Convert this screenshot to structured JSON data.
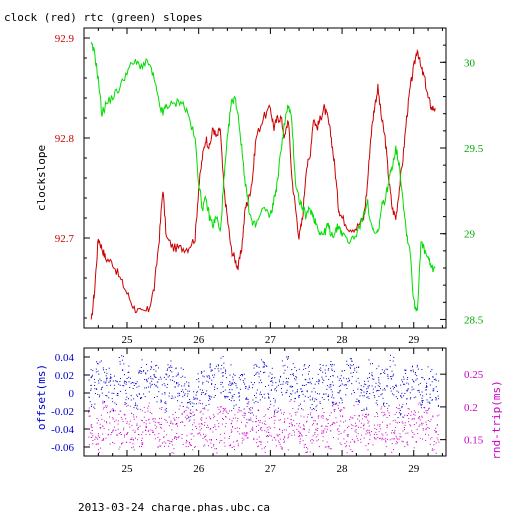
{
  "header": {
    "title": "clock (red) rtc (green) slopes",
    "footer": "2013-03-24  charge.phas.ubc.ca"
  },
  "colors": {
    "clock": "#cc0000",
    "rtc": "#00dd00",
    "offset": "#0000cc",
    "rnd_trip": "#cc00cc",
    "axis": "#000000"
  },
  "chart_data": [
    {
      "type": "line",
      "ylabel": "clockslope",
      "xlim": [
        24.4,
        29.45
      ],
      "ylim_left": [
        92.61,
        92.91
      ],
      "ylim_right": [
        28.45,
        30.2
      ],
      "x_ticks": [
        "25",
        "26",
        "27",
        "28",
        "29"
      ],
      "y_ticks_left": [
        "92.9",
        "92.8",
        "92.7"
      ],
      "y_ticks_right": [
        "30",
        "29.5",
        "29",
        "28.5"
      ],
      "series": [
        {
          "name": "clock (red)",
          "axis": "left",
          "x": [
            24.5,
            24.55,
            24.6,
            24.65,
            24.7,
            24.8,
            24.9,
            25.0,
            25.1,
            25.2,
            25.3,
            25.38,
            25.45,
            25.5,
            25.55,
            25.65,
            25.75,
            25.85,
            25.95,
            26.0,
            26.05,
            26.1,
            26.15,
            26.2,
            26.25,
            26.3,
            26.35,
            26.4,
            26.45,
            26.5,
            26.55,
            26.6,
            26.65,
            26.7,
            26.75,
            26.8,
            26.9,
            27.0,
            27.05,
            27.1,
            27.15,
            27.2,
            27.25,
            27.3,
            27.35,
            27.4,
            27.45,
            27.5,
            27.55,
            27.6,
            27.65,
            27.7,
            27.75,
            27.8,
            27.85,
            27.9,
            27.95,
            28.0,
            28.1,
            28.2,
            28.3,
            28.35,
            28.4,
            28.45,
            28.5,
            28.55,
            28.6,
            28.65,
            28.7,
            28.75,
            28.8,
            28.85,
            28.9,
            28.95,
            29.0,
            29.05,
            29.1,
            29.15,
            29.2,
            29.25,
            29.3
          ],
          "values": [
            92.615,
            92.65,
            92.7,
            92.69,
            92.68,
            92.675,
            92.66,
            92.645,
            92.63,
            92.625,
            92.628,
            92.65,
            92.7,
            92.75,
            92.7,
            92.69,
            92.69,
            92.69,
            92.7,
            92.75,
            92.78,
            92.8,
            92.79,
            92.81,
            92.8,
            92.81,
            92.75,
            92.72,
            92.69,
            92.68,
            92.67,
            92.69,
            92.73,
            92.74,
            92.76,
            92.8,
            92.82,
            92.83,
            92.81,
            92.82,
            92.82,
            92.8,
            92.82,
            92.76,
            92.73,
            92.7,
            92.72,
            92.77,
            92.78,
            92.82,
            92.81,
            92.82,
            92.83,
            92.82,
            92.8,
            92.77,
            92.73,
            92.72,
            92.71,
            92.71,
            92.72,
            92.75,
            92.8,
            92.83,
            92.85,
            92.82,
            92.8,
            92.76,
            92.73,
            92.72,
            92.75,
            92.78,
            92.82,
            92.85,
            92.87,
            92.89,
            92.87,
            92.86,
            92.84,
            92.83,
            92.83
          ]
        },
        {
          "name": "rtc (green)",
          "axis": "right",
          "x": [
            24.5,
            24.55,
            24.6,
            24.65,
            24.7,
            24.8,
            24.9,
            25.0,
            25.1,
            25.2,
            25.3,
            25.38,
            25.45,
            25.5,
            25.55,
            25.65,
            25.75,
            25.85,
            25.95,
            26.0,
            26.05,
            26.1,
            26.15,
            26.2,
            26.25,
            26.3,
            26.35,
            26.4,
            26.45,
            26.5,
            26.55,
            26.6,
            26.65,
            26.7,
            26.75,
            26.8,
            26.9,
            27.0,
            27.05,
            27.1,
            27.15,
            27.2,
            27.25,
            27.3,
            27.35,
            27.4,
            27.45,
            27.5,
            27.55,
            27.6,
            27.65,
            27.7,
            27.75,
            27.8,
            27.85,
            27.9,
            27.95,
            28.0,
            28.1,
            28.2,
            28.3,
            28.35,
            28.4,
            28.45,
            28.5,
            28.55,
            28.6,
            28.65,
            28.7,
            28.75,
            28.8,
            28.85,
            28.9,
            28.95,
            29.0,
            29.05,
            29.1,
            29.15,
            29.2,
            29.25,
            29.3
          ],
          "values": [
            30.1,
            30.05,
            29.9,
            29.7,
            29.75,
            29.8,
            29.85,
            29.95,
            30.0,
            29.98,
            30.0,
            29.9,
            29.75,
            29.7,
            29.75,
            29.75,
            29.78,
            29.7,
            29.55,
            29.3,
            29.15,
            29.2,
            29.1,
            29.05,
            29.1,
            29.0,
            29.3,
            29.55,
            29.75,
            29.8,
            29.7,
            29.5,
            29.3,
            29.15,
            29.05,
            29.05,
            29.15,
            29.1,
            29.2,
            29.3,
            29.5,
            29.65,
            29.75,
            29.65,
            29.3,
            29.2,
            29.15,
            29.1,
            29.15,
            29.1,
            29.05,
            29.0,
            29.0,
            29.05,
            29.0,
            29.0,
            29.05,
            29.0,
            28.95,
            29.0,
            29.1,
            29.2,
            29.05,
            29.0,
            29.0,
            29.15,
            29.2,
            29.3,
            29.4,
            29.5,
            29.4,
            29.2,
            29.0,
            28.9,
            28.6,
            28.55,
            28.95,
            28.9,
            28.85,
            28.8,
            28.8
          ]
        }
      ]
    },
    {
      "type": "scatter",
      "ylabel_left": "offset(ms)",
      "ylabel_right": "rnd-trip(ms)",
      "xlim": [
        24.4,
        29.45
      ],
      "ylim_left": [
        -0.07,
        0.05
      ],
      "ylim_right": [
        0.125,
        0.29
      ],
      "x_ticks": [
        "25",
        "26",
        "27",
        "28",
        "29"
      ],
      "y_ticks_left": [
        "0.04",
        "0.02",
        "0",
        "-0.02",
        "-0.04",
        "-0.06"
      ],
      "y_ticks_right": [
        "0.25",
        "0.2",
        "0.15"
      ],
      "series": [
        {
          "name": "offset(ms)",
          "axis": "left",
          "x": [
            24.5,
            24.6,
            24.7,
            24.8,
            24.9,
            25.0,
            25.1,
            25.2,
            25.3,
            25.4,
            25.5,
            25.6,
            25.7,
            25.8,
            25.9,
            26.0,
            26.1,
            26.2,
            26.3,
            26.4,
            26.5,
            26.6,
            26.7,
            26.8,
            26.9,
            27.0,
            27.1,
            27.2,
            27.3,
            27.4,
            27.5,
            27.6,
            27.7,
            27.8,
            27.9,
            28.0,
            28.1,
            28.2,
            28.3,
            28.4,
            28.5,
            28.6,
            28.7,
            28.8,
            28.9,
            29.0,
            29.1,
            29.2,
            29.3
          ],
          "values": [
            0.005,
            0.015,
            0.01,
            0.0,
            0.02,
            0.01,
            -0.005,
            0.015,
            0.02,
            0.01,
            0.0,
            0.015,
            0.01,
            0.005,
            -0.01,
            0.01,
            0.005,
            0.015,
            0.02,
            0.01,
            0.0,
            0.005,
            -0.01,
            0.01,
            0.015,
            0.01,
            0.0,
            0.02,
            0.015,
            0.005,
            0.01,
            -0.005,
            0.01,
            0.015,
            0.01,
            0.005,
            0.02,
            0.01,
            0.0,
            0.015,
            0.01,
            0.005,
            0.02,
            -0.005,
            0.01,
            0.015,
            0.005,
            0.01,
            0.0
          ]
        },
        {
          "name": "rnd-trip(ms)",
          "axis": "right",
          "x": [
            24.5,
            24.6,
            24.7,
            24.8,
            24.9,
            25.0,
            25.1,
            25.2,
            25.3,
            25.4,
            25.5,
            25.6,
            25.7,
            25.8,
            25.9,
            26.0,
            26.1,
            26.2,
            26.3,
            26.4,
            26.5,
            26.6,
            26.7,
            26.8,
            26.9,
            27.0,
            27.1,
            27.2,
            27.3,
            27.4,
            27.5,
            27.6,
            27.7,
            27.8,
            27.9,
            28.0,
            28.1,
            28.2,
            28.3,
            28.4,
            28.5,
            28.6,
            28.7,
            28.8,
            28.9,
            29.0,
            29.1,
            29.2,
            29.3
          ],
          "values": [
            0.17,
            0.16,
            0.18,
            0.17,
            0.165,
            0.175,
            0.16,
            0.17,
            0.18,
            0.165,
            0.17,
            0.16,
            0.175,
            0.17,
            0.165,
            0.18,
            0.17,
            0.16,
            0.175,
            0.17,
            0.165,
            0.175,
            0.18,
            0.17,
            0.16,
            0.175,
            0.17,
            0.165,
            0.18,
            0.17,
            0.16,
            0.175,
            0.17,
            0.165,
            0.18,
            0.17,
            0.16,
            0.175,
            0.17,
            0.165,
            0.18,
            0.17,
            0.16,
            0.175,
            0.17,
            0.165,
            0.18,
            0.17,
            0.16
          ]
        }
      ]
    }
  ]
}
